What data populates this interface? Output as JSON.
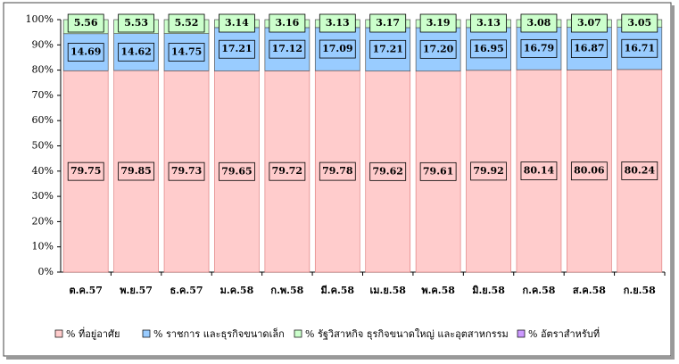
{
  "chart_data": {
    "type": "stacked-bar",
    "categories": [
      "ต.ค.57",
      "พ.ย.57",
      "ธ.ค.57",
      "ม.ค.58",
      "ก.พ.58",
      "มี.ค.58",
      "เม.ย.58",
      "พ.ค.58",
      "มิ.ย.58",
      "ก.ค.58",
      "ส.ค.58",
      "ก.ย.58"
    ],
    "series": [
      {
        "name": "% ที่อยู่อาศัย",
        "color": "#ffcccc",
        "values": [
          79.75,
          79.85,
          79.73,
          79.65,
          79.72,
          79.78,
          79.62,
          79.61,
          79.92,
          80.14,
          80.06,
          80.24
        ],
        "value_labels": [
          "79.75",
          "79.85",
          "79.73",
          "79.65",
          "79.72",
          "79.78",
          "79.62",
          "79.61",
          "79.92",
          "80.14",
          "80.06",
          "80.24"
        ]
      },
      {
        "name": "% ราชการ และธุรกิจขนาดเล็ก",
        "color": "#99ccff",
        "values": [
          14.69,
          14.62,
          14.75,
          17.21,
          17.12,
          17.09,
          17.21,
          17.2,
          16.95,
          16.79,
          16.87,
          16.71
        ],
        "value_labels": [
          "14.69",
          "14.62",
          "14.75",
          "17.21",
          "17.12",
          "17.09",
          "17.21",
          "17.20",
          "16.95",
          "16.79",
          "16.87",
          "16.71"
        ]
      },
      {
        "name": "% รัฐวิสาหกิจ ธุรกิจขนาดใหญ่ และอุตสาหกรรม",
        "color": "#ccffcc",
        "values": [
          5.56,
          5.53,
          5.52,
          3.14,
          3.16,
          3.13,
          3.17,
          3.19,
          3.13,
          3.08,
          3.07,
          3.05
        ],
        "value_labels": [
          "5.56",
          "5.53",
          "5.52",
          "3.14",
          "3.16",
          "3.13",
          "3.17",
          "3.19",
          "3.13",
          "3.08",
          "3.07",
          "3.05"
        ]
      },
      {
        "name": "% อัตราสำหรับที่",
        "color": "#cc99ff",
        "values": [
          0,
          0,
          0,
          0,
          0,
          0,
          0,
          0,
          0,
          0,
          0,
          0
        ]
      }
    ],
    "ylim": [
      0,
      100
    ],
    "yticks": [
      {
        "value": 0,
        "label": "0%"
      },
      {
        "value": 10,
        "label": "10%"
      },
      {
        "value": 20,
        "label": "20%"
      },
      {
        "value": 30,
        "label": "30%"
      },
      {
        "value": 40,
        "label": "40%"
      },
      {
        "value": 50,
        "label": "50%"
      },
      {
        "value": 60,
        "label": "60%"
      },
      {
        "value": 70,
        "label": "70%"
      },
      {
        "value": 80,
        "label": "80%"
      },
      {
        "value": 90,
        "label": "90%"
      },
      {
        "value": 100,
        "label": "100%"
      }
    ],
    "legend": "bottom"
  }
}
